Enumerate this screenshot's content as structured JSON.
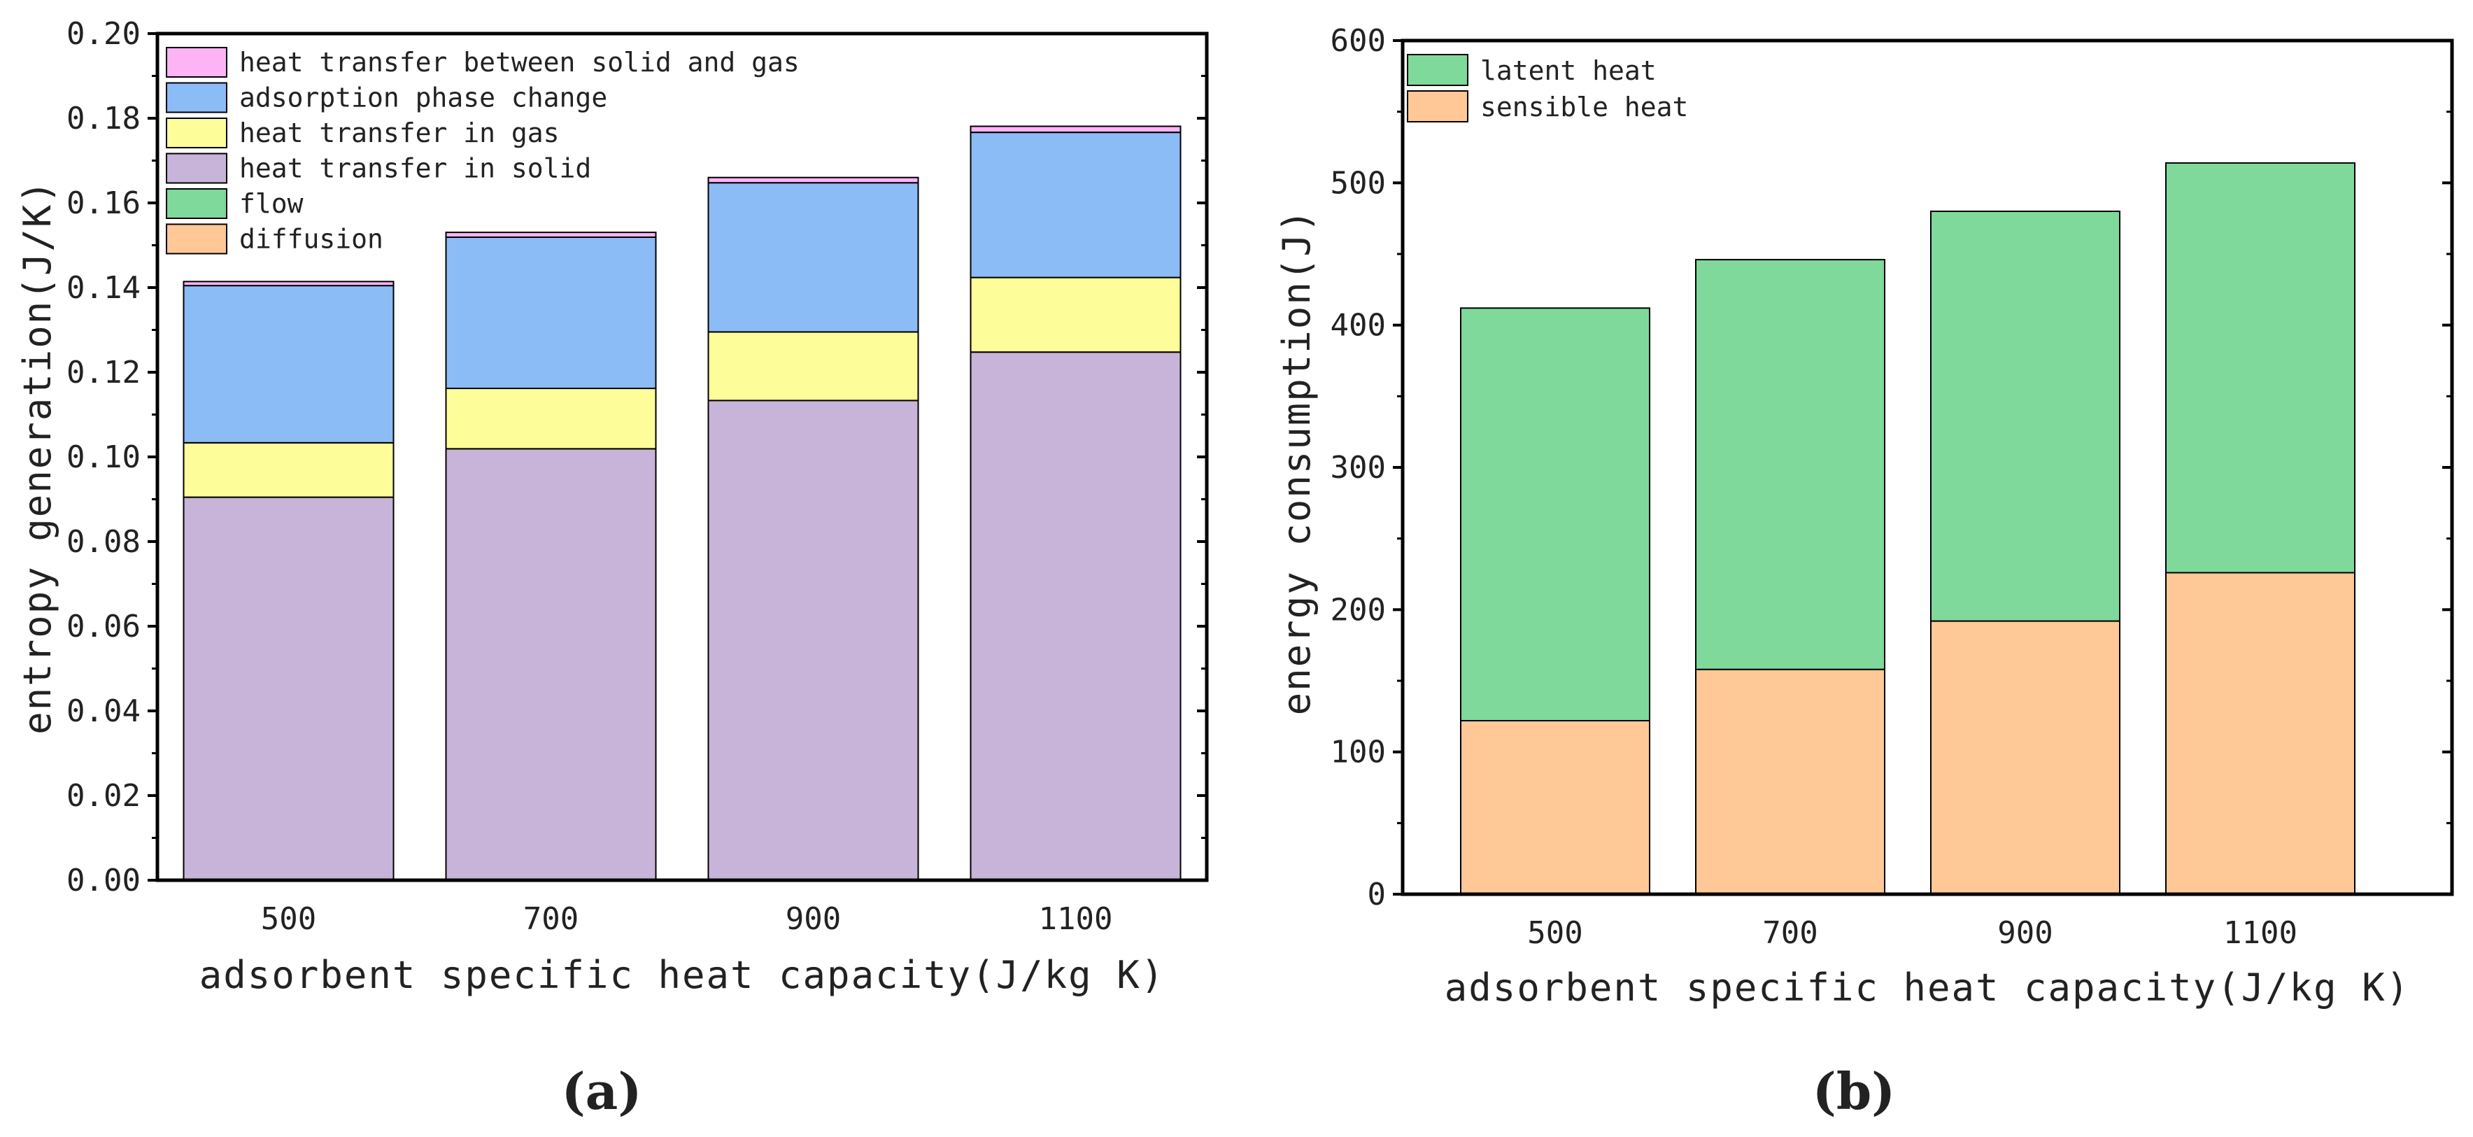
{
  "chart_data": [
    {
      "type": "bar",
      "stacked": true,
      "panel_label": "(a)",
      "title": "",
      "xlabel": "adsorbent specific heat capacity(J/kg K)",
      "ylabel": "entropy generation(J/K)",
      "categories": [
        "500",
        "700",
        "900",
        "1100"
      ],
      "ylim": [
        0,
        0.21
      ],
      "yticks": [
        "0.00",
        "0.02",
        "0.04",
        "0.06",
        "0.08",
        "0.10",
        "0.12",
        "0.14",
        "0.16",
        "0.18",
        "0.20"
      ],
      "grid": false,
      "legend_position": "top-left",
      "series": [
        {
          "name": "diffusion",
          "color": "#ffc896",
          "values": [
            0.0,
            0.0,
            0.0,
            0.0
          ]
        },
        {
          "name": "flow",
          "color": "#7ed99b",
          "values": [
            0.0,
            0.0,
            0.0,
            0.0
          ]
        },
        {
          "name": "heat transfer in solid",
          "color": "#c8b4d8",
          "values": [
            0.095,
            0.107,
            0.119,
            0.131
          ]
        },
        {
          "name": "heat transfer in gas",
          "color": "#fdfd99",
          "values": [
            0.0135,
            0.015,
            0.017,
            0.0185
          ]
        },
        {
          "name": "adsorption phase change",
          "color": "#8cbcf5",
          "values": [
            0.039,
            0.0375,
            0.037,
            0.036
          ]
        },
        {
          "name": "heat transfer between solid and gas",
          "color": "#fcb4f4",
          "values": [
            0.001,
            0.0012,
            0.0013,
            0.0015
          ]
        }
      ]
    },
    {
      "type": "bar",
      "stacked": true,
      "panel_label": "(b)",
      "title": "",
      "xlabel": "adsorbent specific heat capacity(J/kg K)",
      "ylabel": "energy consumption(J)",
      "categories": [
        "500",
        "700",
        "900",
        "1100"
      ],
      "ylim": [
        0,
        600
      ],
      "yticks": [
        "0",
        "100",
        "200",
        "300",
        "400",
        "500",
        "600"
      ],
      "grid": false,
      "legend_position": "top-left",
      "series": [
        {
          "name": "sensible heat",
          "color": "#ffc896",
          "values": [
            122,
            158,
            192,
            226
          ]
        },
        {
          "name": "latent heat",
          "color": "#7ed99b",
          "values": [
            290,
            288,
            288,
            288
          ]
        }
      ]
    }
  ]
}
